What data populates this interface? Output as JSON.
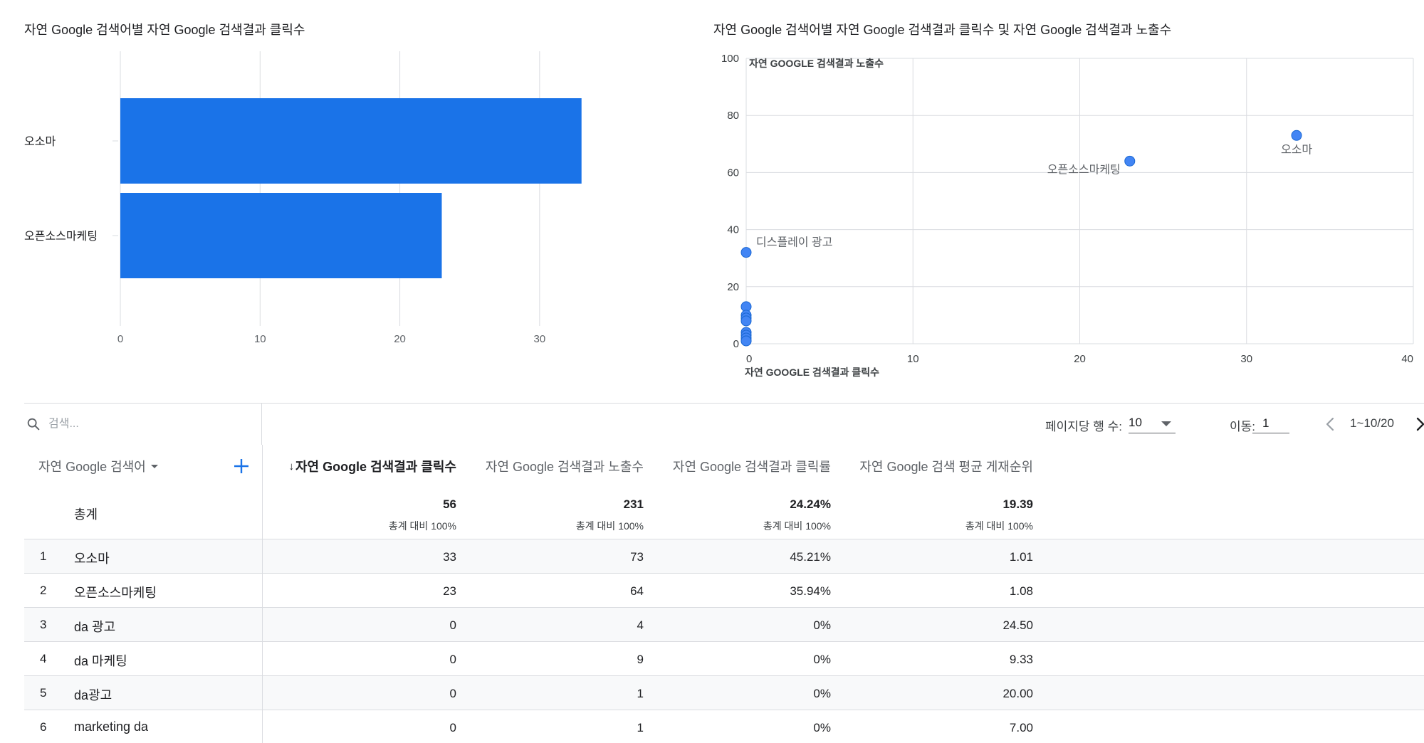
{
  "bar_chart": {
    "title": "자연 Google 검색어별 자연 Google 검색결과 클릭수",
    "accent": "#1a73e8"
  },
  "scatter_chart": {
    "title": "자연 Google 검색어별 자연 Google 검색결과 클릭수 및 자연 Google 검색결과 노출수",
    "ylabel": "자연 GOOGLE 검색결과 노출수",
    "xlabel": "자연 GOOGLE 검색결과 클릭수",
    "accent": "#4285f4"
  },
  "chart_data": [
    {
      "type": "bar",
      "orientation": "horizontal",
      "title": "자연 Google 검색어별 자연 Google 검색결과 클릭수",
      "categories": [
        "오소마",
        "오픈소스마케팅"
      ],
      "values": [
        33,
        23
      ],
      "xlim": [
        0,
        35
      ],
      "xticks": [
        0,
        10,
        20,
        30
      ],
      "grid": true
    },
    {
      "type": "scatter",
      "title": "자연 Google 검색어별 자연 Google 검색결과 클릭수 및 자연 Google 검색결과 노출수",
      "xlabel": "자연 GOOGLE 검색결과 클릭수",
      "ylabel": "자연 GOOGLE 검색결과 노출수",
      "xlim": [
        0,
        40
      ],
      "ylim": [
        0,
        100
      ],
      "xticks": [
        0,
        10,
        20,
        30,
        40
      ],
      "yticks": [
        0,
        20,
        40,
        60,
        80,
        100
      ],
      "grid": true,
      "points": [
        {
          "x": 33,
          "y": 73,
          "label": "오소마"
        },
        {
          "x": 23,
          "y": 64,
          "label": "오픈소스마케팅"
        },
        {
          "x": 0,
          "y": 32,
          "label": "디스플레이 광고"
        },
        {
          "x": 0,
          "y": 13,
          "label": ""
        },
        {
          "x": 0,
          "y": 10,
          "label": ""
        },
        {
          "x": 0,
          "y": 9,
          "label": ""
        },
        {
          "x": 0,
          "y": 8,
          "label": ""
        },
        {
          "x": 0,
          "y": 4,
          "label": ""
        },
        {
          "x": 0,
          "y": 3,
          "label": ""
        },
        {
          "x": 0,
          "y": 2,
          "label": ""
        },
        {
          "x": 0,
          "y": 1,
          "label": ""
        },
        {
          "x": 0,
          "y": 1,
          "label": ""
        }
      ]
    }
  ],
  "toolbar": {
    "search_placeholder": "검색...",
    "rows_per_page_label": "페이지당 행 수:",
    "rows_per_page_value": "10",
    "goto_label": "이동:",
    "goto_value": "1",
    "range_label": "1~10/20"
  },
  "table": {
    "dimension_header": "자연 Google 검색어",
    "metric_headers": [
      "자연 Google 검색결과 클릭수",
      "자연 Google 검색결과 노출수",
      "자연 Google 검색결과 클릭률",
      "자연 Google 검색 평균 게재순위"
    ],
    "sort_indicator": "↓",
    "total_label": "총계",
    "totals": [
      {
        "value": "56",
        "sub": "총계 대비 100%"
      },
      {
        "value": "231",
        "sub": "총계 대비 100%"
      },
      {
        "value": "24.24%",
        "sub": "총계 대비 100%"
      },
      {
        "value": "19.39",
        "sub": "총계 대비 100%"
      }
    ],
    "rows": [
      {
        "index": "1",
        "term": "오소마",
        "clicks": "33",
        "impressions": "73",
        "ctr": "45.21%",
        "position": "1.01"
      },
      {
        "index": "2",
        "term": "오픈소스마케팅",
        "clicks": "23",
        "impressions": "64",
        "ctr": "35.94%",
        "position": "1.08"
      },
      {
        "index": "3",
        "term": "da 광고",
        "clicks": "0",
        "impressions": "4",
        "ctr": "0%",
        "position": "24.50"
      },
      {
        "index": "4",
        "term": "da 마케팅",
        "clicks": "0",
        "impressions": "9",
        "ctr": "0%",
        "position": "9.33"
      },
      {
        "index": "5",
        "term": "da광고",
        "clicks": "0",
        "impressions": "1",
        "ctr": "0%",
        "position": "20.00"
      },
      {
        "index": "6",
        "term": "marketing da",
        "clicks": "0",
        "impressions": "1",
        "ctr": "0%",
        "position": "7.00"
      }
    ]
  }
}
